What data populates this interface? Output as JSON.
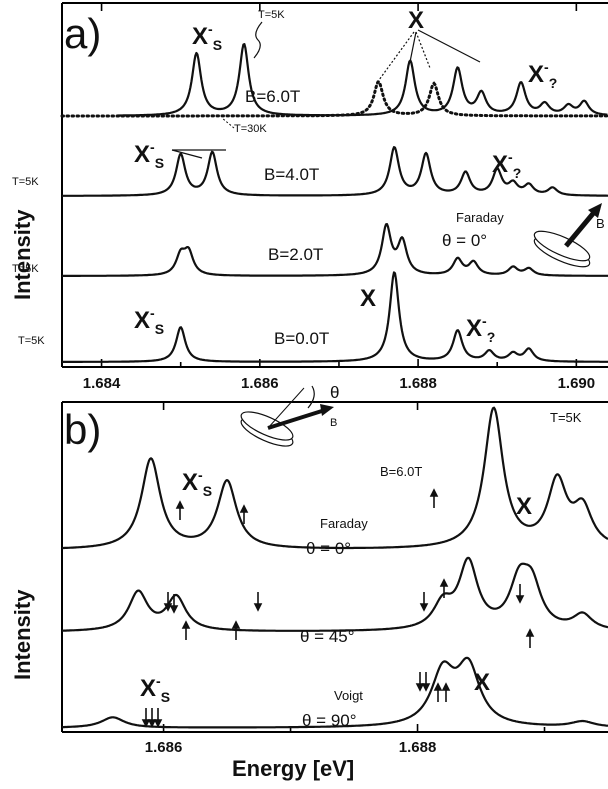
{
  "chart_data": [
    {
      "panel": "a)",
      "type": "line",
      "xlabel": "",
      "ylabel": "Intensity",
      "xlim": [
        1.6835,
        1.6904
      ],
      "xticks": [
        1.684,
        1.686,
        1.688,
        1.69
      ],
      "x_tick_labels": [
        "1.684",
        "1.686",
        "1.688",
        "1.690"
      ],
      "series": [
        {
          "label": "B=6.0T",
          "temp_label": "T=5K",
          "style": "solid",
          "peaks": [
            {
              "x": 1.6852,
              "height": 1.0
            },
            {
              "x": 1.6858,
              "height": 1.15
            },
            {
              "x": 1.6879,
              "height": 0.88
            },
            {
              "x": 1.6885,
              "height": 0.75
            },
            {
              "x": 1.6888,
              "height": 0.35
            },
            {
              "x": 1.6893,
              "height": 0.52
            },
            {
              "x": 1.6896,
              "height": 0.18
            },
            {
              "x": 1.6899,
              "height": 0.15
            },
            {
              "x": 1.6901,
              "height": 0.22
            }
          ]
        },
        {
          "label": "",
          "temp_label": "T=30K",
          "style": "dotted",
          "peaks": [
            {
              "x": 1.6875,
              "height": 0.55
            },
            {
              "x": 1.6882,
              "height": 0.52
            }
          ]
        },
        {
          "label": "B=4.0T",
          "temp_label": "T=5K",
          "style": "solid",
          "peaks": [
            {
              "x": 1.685,
              "height": 0.82
            },
            {
              "x": 1.6854,
              "height": 0.86
            },
            {
              "x": 1.6877,
              "height": 0.95
            },
            {
              "x": 1.6881,
              "height": 0.82
            },
            {
              "x": 1.6886,
              "height": 0.45
            },
            {
              "x": 1.689,
              "height": 0.5
            },
            {
              "x": 1.6892,
              "height": 0.22
            },
            {
              "x": 1.6894,
              "height": 0.2
            },
            {
              "x": 1.6897,
              "height": 0.15
            }
          ]
        },
        {
          "label": "B=2.0T",
          "temp_label": "T=5K",
          "style": "solid",
          "peaks": [
            {
              "x": 1.685,
              "height": 0.42
            },
            {
              "x": 1.6851,
              "height": 0.48
            },
            {
              "x": 1.6876,
              "height": 1.05
            },
            {
              "x": 1.6878,
              "height": 0.72
            },
            {
              "x": 1.6885,
              "height": 0.35
            },
            {
              "x": 1.6887,
              "height": 0.28
            },
            {
              "x": 1.6892,
              "height": 0.18
            },
            {
              "x": 1.6894,
              "height": 0.15
            }
          ]
        },
        {
          "label": "B=0.0T",
          "temp_label": "T=5K",
          "style": "solid",
          "peaks": [
            {
              "x": 1.685,
              "height": 0.62
            },
            {
              "x": 1.6877,
              "height": 1.6
            },
            {
              "x": 1.6885,
              "height": 0.55
            },
            {
              "x": 1.6889,
              "height": 0.18
            },
            {
              "x": 1.6892,
              "height": 0.14
            },
            {
              "x": 1.6894,
              "height": 0.22
            }
          ]
        }
      ],
      "annotations": {
        "xs_label": "X",
        "xs_sup": "-",
        "xs_sub": "S",
        "x_label": "X",
        "xq_label": "X",
        "xq_sup": "-",
        "xq_sub": "?",
        "faraday": "Faraday",
        "theta0": "θ = 0°",
        "b_vec": "B",
        "t5k": "T=5K",
        "t30k": "T=30K"
      }
    },
    {
      "panel": "b)",
      "type": "line",
      "xlabel": "Energy [eV]",
      "ylabel": "Intensity",
      "xlim": [
        1.6852,
        1.6895
      ],
      "xticks": [
        1.686,
        1.688
      ],
      "x_tick_labels": [
        "1.686",
        "1.688"
      ],
      "series": [
        {
          "label": "θ = 0°",
          "mode": "Faraday",
          "peaks": [
            {
              "x": 1.6859,
              "height": 1.0
            },
            {
              "x": 1.6865,
              "height": 0.75
            },
            {
              "x": 1.6886,
              "height": 1.55
            },
            {
              "x": 1.6891,
              "height": 0.72
            },
            {
              "x": 1.6893,
              "height": 0.42
            }
          ]
        },
        {
          "label": "θ = 45°",
          "mode": "",
          "peaks": [
            {
              "x": 1.6858,
              "height": 0.55
            },
            {
              "x": 1.6861,
              "height": 0.48
            },
            {
              "x": 1.6882,
              "height": 0.35
            },
            {
              "x": 1.6884,
              "height": 0.95
            },
            {
              "x": 1.6888,
              "height": 0.62
            },
            {
              "x": 1.6889,
              "height": 0.58
            },
            {
              "x": 1.6893,
              "height": 0.22
            }
          ]
        },
        {
          "label": "θ = 90°",
          "mode": "Voigt",
          "peaks": [
            {
              "x": 1.6856,
              "height": 0.15
            },
            {
              "x": 1.6882,
              "height": 0.75
            },
            {
              "x": 1.6884,
              "height": 0.82
            },
            {
              "x": 1.6893,
              "height": 0.08
            }
          ]
        }
      ],
      "annotations": {
        "field": "B=6.0T",
        "temp": "T=5K",
        "theta": "θ",
        "b_vec": "B",
        "xs_label": "X",
        "xs_sup": "-",
        "xs_sub": "S",
        "x_label": "X"
      }
    }
  ]
}
